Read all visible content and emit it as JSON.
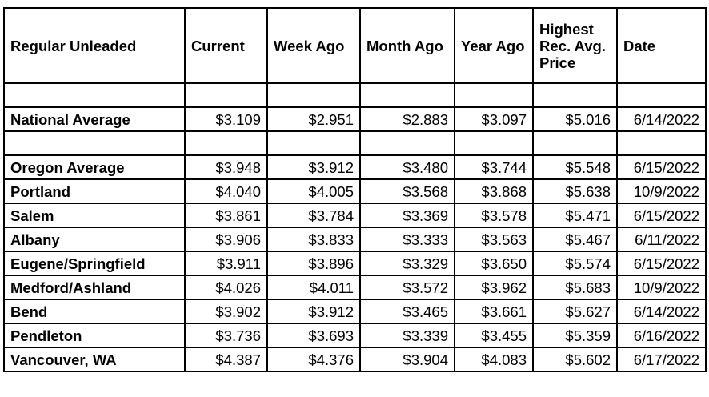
{
  "table": {
    "headers": [
      "Regular Unleaded",
      "Current",
      "Week Ago",
      "Month Ago",
      "Year Ago",
      "Highest Rec. Avg. Price",
      "Date"
    ],
    "rows": [
      [],
      [
        "National Average",
        "$3.109",
        "$2.951",
        "$2.883",
        "$3.097",
        "$5.016",
        "6/14/2022"
      ],
      [],
      [
        "Oregon Average",
        "$3.948",
        "$3.912",
        "$3.480",
        "$3.744",
        "$5.548",
        "6/15/2022"
      ],
      [
        "Portland",
        "$4.040",
        "$4.005",
        "$3.568",
        "$3.868",
        "$5.638",
        "10/9/2022"
      ],
      [
        "Salem",
        "$3.861",
        "$3.784",
        "$3.369",
        "$3.578",
        "$5.471",
        "6/15/2022"
      ],
      [
        "Albany",
        "$3.906",
        "$3.833",
        "$3.333",
        "$3.563",
        "$5.467",
        "6/11/2022"
      ],
      [
        "Eugene/Springfield",
        "$3.911",
        "$3.896",
        "$3.329",
        "$3.650",
        "$5.574",
        "6/15/2022"
      ],
      [
        "Medford/Ashland",
        "$4.026",
        "$4.011",
        "$3.572",
        "$3.962",
        "$5.683",
        "10/9/2022"
      ],
      [
        "Bend",
        "$3.902",
        "$3.912",
        "$3.465",
        "$3.661",
        "$5.627",
        "6/14/2022"
      ],
      [
        "Pendleton",
        "$3.736",
        "$3.693",
        "$3.339",
        "$3.455",
        "$5.359",
        "6/16/2022"
      ],
      [
        "Vancouver, WA",
        "$4.387",
        "$4.376",
        "$3.904",
        "$4.083",
        "$5.602",
        "6/17/2022"
      ]
    ]
  }
}
